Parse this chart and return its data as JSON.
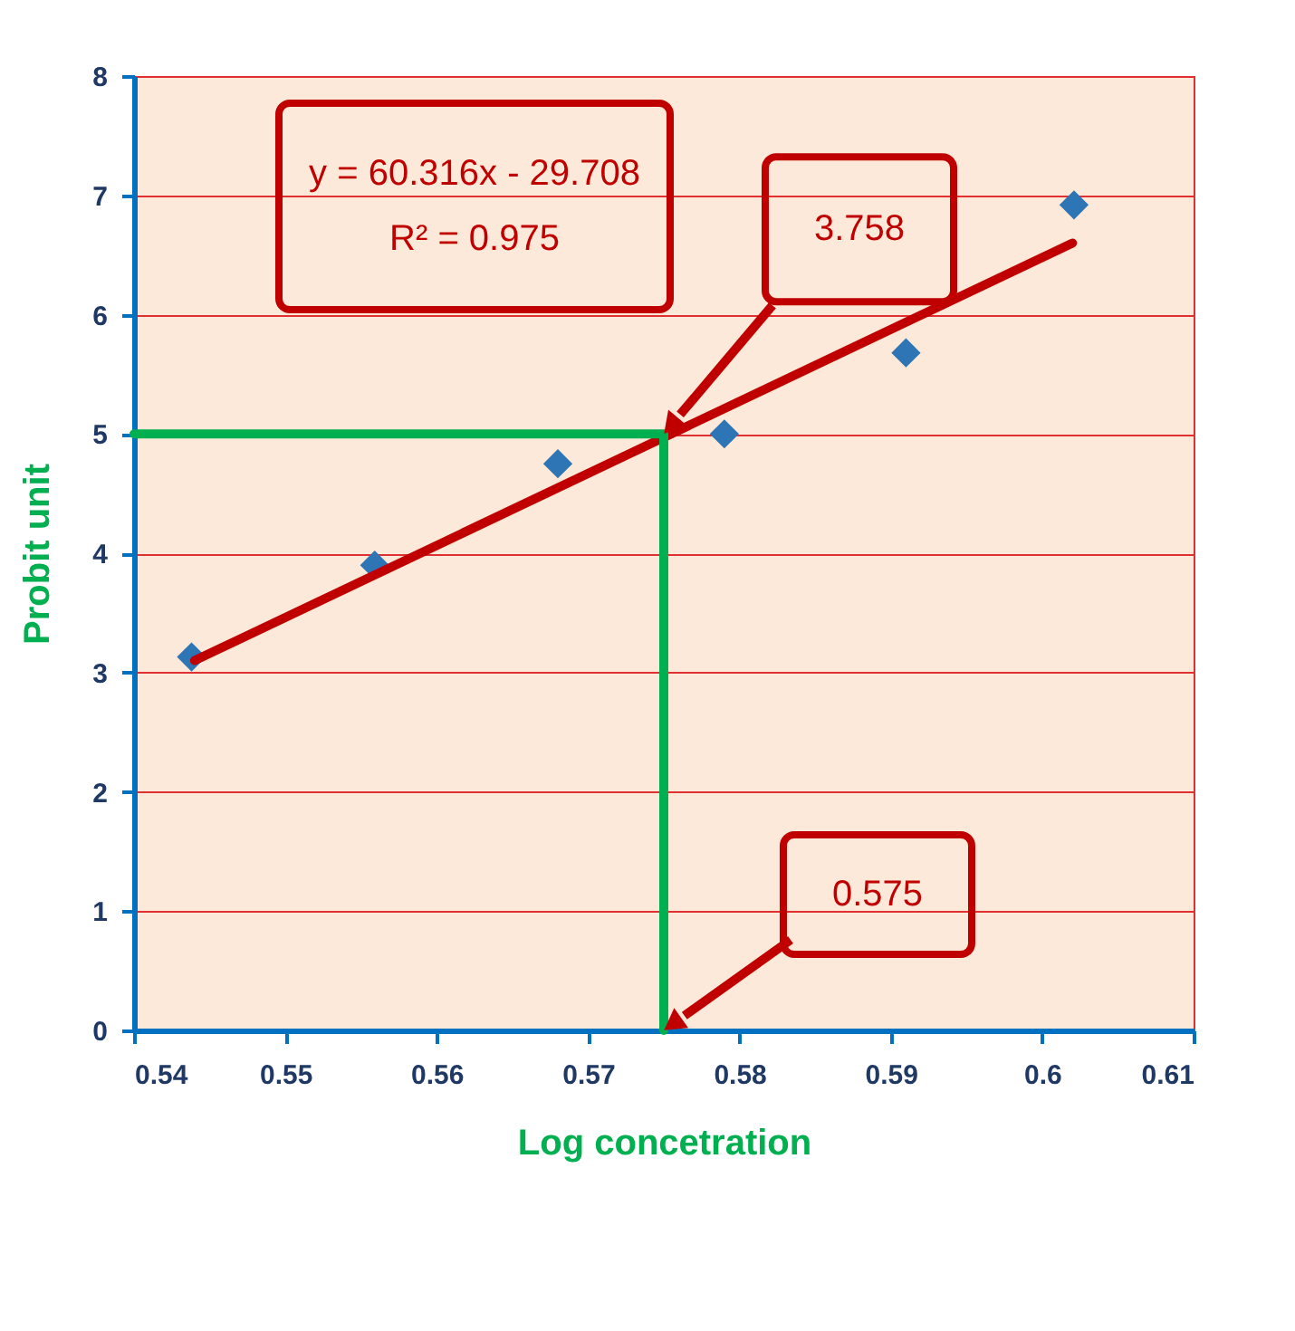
{
  "chart_data": {
    "type": "scatter",
    "xlabel": "Log concetration",
    "ylabel": "Probit unit",
    "xlim": [
      0.54,
      0.61
    ],
    "xticks": [
      0.54,
      0.55,
      0.56,
      0.57,
      0.58,
      0.59,
      0.6,
      0.61
    ],
    "ylim": [
      0,
      8
    ],
    "yticks": [
      0,
      1,
      2,
      3,
      4,
      5,
      6,
      7,
      8
    ],
    "grid": "y",
    "series": [
      {
        "color": "#2e75b6",
        "marker": "diamond",
        "x": [
          0.5438,
          0.5559,
          0.568,
          0.579,
          0.591,
          0.6021
        ],
        "values": [
          3.13,
          3.9,
          4.75,
          5.0,
          5.68,
          6.92
        ]
      },
      {
        "type": "line",
        "color": "#c00000",
        "marker": "none",
        "line_style": "solid",
        "x": [
          0.544,
          0.602
        ],
        "values": [
          3.1,
          6.6
        ]
      },
      {
        "type": "line",
        "color": "#00b050",
        "marker": "none",
        "line_style": "solid",
        "x": [
          0.54,
          0.575,
          0.575
        ],
        "values": [
          5,
          5,
          0
        ]
      }
    ],
    "annotations": [
      "y = 60.316x - 29.708\nR² = 0.975",
      "3.758",
      "0.575"
    ]
  }
}
